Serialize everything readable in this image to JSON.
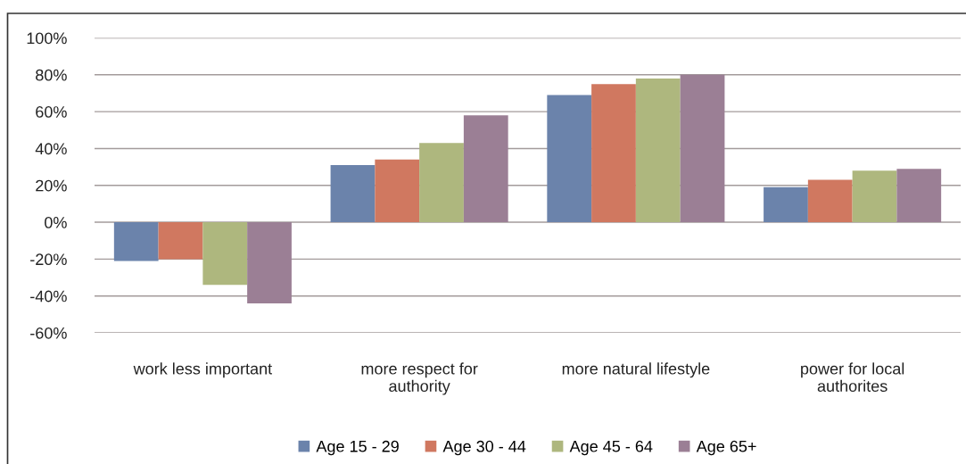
{
  "chart_data": {
    "type": "bar",
    "categories": [
      "work less important",
      "more respect for\nauthority",
      "more natural lifestyle",
      "power for local\nauthorites"
    ],
    "series": [
      {
        "name": "Age 15 - 29",
        "color": "#6b83ab",
        "values": [
          -21,
          31,
          69,
          19
        ]
      },
      {
        "name": "Age 30 - 44",
        "color": "#d07860",
        "values": [
          -20,
          34,
          75,
          23
        ]
      },
      {
        "name": "Age 45 - 64",
        "color": "#aeb77e",
        "values": [
          -34,
          43,
          78,
          28
        ]
      },
      {
        "name": "Age 65+",
        "color": "#9b7f95",
        "values": [
          -44,
          58,
          80,
          29
        ]
      }
    ],
    "ylim": [
      -60,
      100
    ],
    "yticks": [
      {
        "value": -60,
        "label": "-60%"
      },
      {
        "value": -40,
        "label": "-40%"
      },
      {
        "value": -20,
        "label": "-20%"
      },
      {
        "value": 0,
        "label": "0%"
      },
      {
        "value": 20,
        "label": "20%"
      },
      {
        "value": 40,
        "label": "40%"
      },
      {
        "value": 60,
        "label": "60%"
      },
      {
        "value": 80,
        "label": "80%"
      },
      {
        "value": 100,
        "label": "100%"
      }
    ],
    "grid": "y",
    "legend": "bottom"
  }
}
